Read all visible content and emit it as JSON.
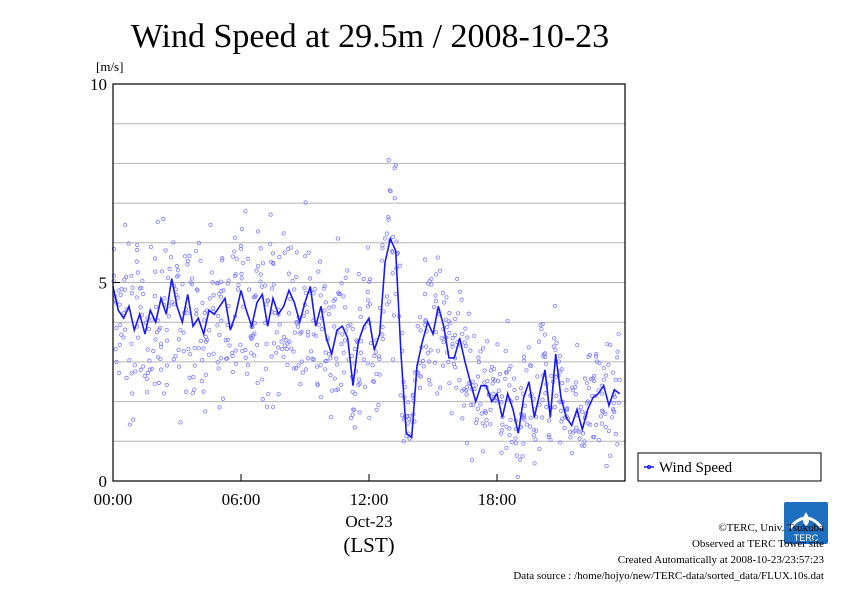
{
  "chart_data": {
    "type": "scatter",
    "title": "Wind Speed at 29.5m / 2008-10-23",
    "ylabel": "[m/s]",
    "xlabel_date": "Oct-23",
    "xlabel_tz": "(LST)",
    "ylim": [
      0,
      10
    ],
    "xlim": [
      0,
      24
    ],
    "yticks": [
      0,
      5,
      10
    ],
    "ygrid": [
      1,
      2,
      3,
      4,
      5,
      6,
      7,
      8,
      9
    ],
    "xticks": [
      {
        "value": 0,
        "label": "00:00"
      },
      {
        "value": 6,
        "label": "06:00"
      },
      {
        "value": 12,
        "label": "12:00"
      },
      {
        "value": 18,
        "label": "18:00"
      }
    ],
    "legend": {
      "label": "Wind Speed",
      "placement": "right"
    },
    "colors": {
      "points": "#7c7cff",
      "line": "#1a1aee"
    },
    "series": [
      {
        "name": "Wind Speed",
        "x": [
          0.0,
          0.25,
          0.5,
          0.75,
          1.0,
          1.25,
          1.5,
          1.75,
          2.0,
          2.25,
          2.5,
          2.75,
          3.0,
          3.25,
          3.5,
          3.75,
          4.0,
          4.25,
          4.5,
          4.75,
          5.0,
          5.25,
          5.5,
          5.75,
          6.0,
          6.25,
          6.5,
          6.75,
          7.0,
          7.25,
          7.5,
          7.75,
          8.0,
          8.25,
          8.5,
          8.75,
          9.0,
          9.25,
          9.5,
          9.75,
          10.0,
          10.25,
          10.5,
          10.75,
          11.0,
          11.25,
          11.5,
          11.75,
          12.0,
          12.25,
          12.5,
          12.75,
          13.0,
          13.25,
          13.5,
          13.75,
          14.0,
          14.25,
          14.5,
          14.75,
          15.0,
          15.25,
          15.5,
          15.75,
          16.0,
          16.25,
          16.5,
          16.75,
          17.0,
          17.25,
          17.5,
          17.75,
          18.0,
          18.25,
          18.5,
          18.75,
          19.0,
          19.25,
          19.5,
          19.75,
          20.0,
          20.25,
          20.5,
          20.75,
          21.0,
          21.25,
          21.5,
          21.75,
          22.0,
          22.25,
          22.5,
          22.75,
          23.0,
          23.25,
          23.5,
          23.75
        ],
        "y": [
          4.9,
          4.3,
          4.1,
          4.4,
          3.8,
          4.2,
          3.7,
          4.3,
          4.0,
          4.6,
          4.2,
          5.1,
          4.4,
          4.0,
          4.7,
          3.9,
          4.1,
          3.7,
          4.3,
          4.2,
          4.4,
          4.6,
          3.8,
          4.2,
          4.8,
          4.3,
          3.9,
          4.5,
          4.7,
          3.9,
          4.6,
          4.2,
          4.4,
          4.8,
          4.5,
          4.0,
          4.5,
          4.9,
          3.9,
          4.4,
          3.6,
          3.2,
          3.8,
          3.9,
          3.6,
          2.4,
          3.5,
          3.9,
          4.1,
          3.3,
          3.7,
          5.5,
          6.1,
          5.8,
          3.2,
          1.2,
          1.1,
          2.9,
          3.5,
          4.0,
          3.7,
          4.4,
          3.9,
          3.1,
          3.1,
          3.6,
          3.0,
          2.5,
          2.0,
          2.4,
          2.4,
          2.0,
          2.2,
          1.6,
          2.2,
          1.8,
          1.2,
          2.1,
          2.5,
          1.6,
          2.2,
          2.8,
          1.6,
          3.2,
          2.1,
          1.6,
          1.4,
          1.8,
          1.3,
          1.8,
          2.1,
          2.2,
          2.4,
          1.9,
          2.3,
          2.2
        ]
      }
    ]
  },
  "credits": {
    "copyright": "©TERC, Univ. Tsukuba",
    "observed": "Observed at TERC Tower site",
    "created": "Created Automatically at 2008-10-23/23:57:23",
    "source": "Data source : /home/hojyo/new/TERC-data/sorted_data/FLUX.10s.dat",
    "logo_text": "TERC"
  }
}
